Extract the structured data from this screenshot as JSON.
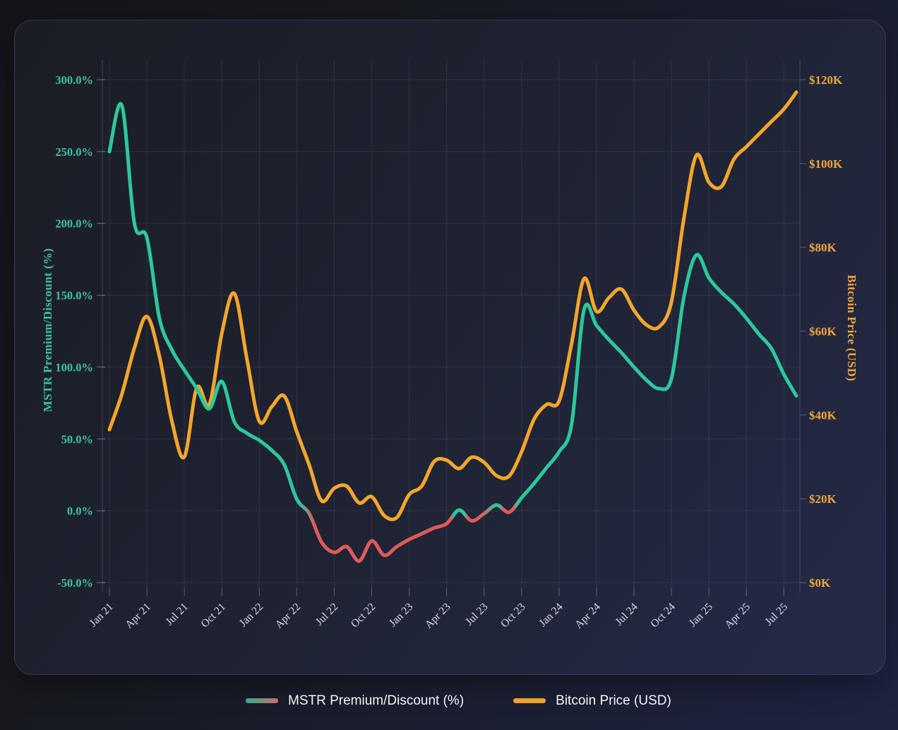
{
  "chart_data": {
    "type": "line",
    "title": "",
    "x_axis": {
      "tick_labels": [
        "Jan 21",
        "Apr 21",
        "Jul 21",
        "Oct 21",
        "Jan 22",
        "Apr 22",
        "Jul 22",
        "Oct 22",
        "Jan 23",
        "Apr 23",
        "Jul 23",
        "Oct 23",
        "Jan 24",
        "Apr 24",
        "Jul 24",
        "Oct 24",
        "Jan 25",
        "Apr 25",
        "Jul 25"
      ],
      "tick_month_offsets": [
        0,
        3,
        6,
        9,
        12,
        15,
        18,
        21,
        24,
        27,
        30,
        33,
        36,
        39,
        42,
        45,
        48,
        51,
        54
      ],
      "label_rotation_deg": -45,
      "text_color": "#d9dce9"
    },
    "left_axis": {
      "title": "MSTR Premium/Discount (%)",
      "tick_labels": [
        "300.0%",
        "250.0%",
        "200.0%",
        "150.0%",
        "100.0%",
        "50.0%",
        "0.0%",
        "-50.0%"
      ],
      "tick_values": [
        300,
        250,
        200,
        150,
        100,
        50,
        0,
        -50
      ],
      "range": [
        -50,
        300
      ],
      "text_color": "#3fc2a0"
    },
    "right_axis": {
      "title": "Bitcoin Price (USD)",
      "tick_labels": [
        "$120K",
        "$100K",
        "$80K",
        "$60K",
        "$40K",
        "$20K",
        "$0K"
      ],
      "tick_values": [
        120,
        100,
        80,
        60,
        40,
        20,
        0
      ],
      "range": [
        0,
        120
      ],
      "text_color": "#f2a63a"
    },
    "grid": {
      "show": true,
      "color": "rgba(168,178,214,0.10)",
      "spine_color": "rgba(168,178,214,0.22)"
    },
    "x_unit": "month offset from Jan 21 (one value per month, Jan 2021 through Aug 2025)",
    "series": [
      {
        "name": "MSTR Premium/Discount (%)",
        "axis": "left",
        "unit": "%",
        "color": "#2cc89c",
        "negative_color": "#e05a5a",
        "values": [
          250,
          282,
          200,
          190,
          134,
          112,
          98,
          85,
          71,
          90,
          62,
          54,
          49,
          42,
          32,
          8,
          -2,
          -22,
          -29,
          -25,
          -35,
          -21,
          -31,
          -25,
          -20,
          -16,
          -12,
          -9,
          0.5,
          -7,
          -2,
          4,
          -1,
          9,
          19,
          30,
          41,
          60,
          140,
          129,
          119,
          110,
          100,
          91,
          85,
          92,
          149,
          178,
          162,
          152,
          144,
          134,
          123,
          113,
          95,
          80
        ]
      },
      {
        "name": "Bitcoin Price (USD)",
        "axis": "right",
        "unit": "thousand USD",
        "color": "#f3a62b",
        "values": [
          36.5,
          45,
          56,
          63.5,
          54,
          38.5,
          30,
          46.5,
          42.5,
          59.5,
          69,
          53.5,
          38.5,
          42,
          44.5,
          36,
          28,
          19.5,
          22.5,
          23,
          19,
          20.5,
          16,
          15.5,
          21,
          23,
          28.9,
          29.2,
          27.2,
          29.9,
          28.7,
          25.5,
          25.4,
          31.2,
          39,
          42.5,
          43.3,
          57,
          72.5,
          64.7,
          68,
          70,
          65,
          61.5,
          61,
          67,
          87,
          102,
          95.5,
          94.5,
          101,
          104,
          107,
          110,
          113,
          117
        ]
      }
    ],
    "legend": [
      {
        "label": "MSTR Premium/Discount (%)",
        "swatch_colors": [
          "#2fae92",
          "#d06a62"
        ]
      },
      {
        "label": "Bitcoin Price (USD)",
        "swatch_colors": [
          "#f0a32a",
          "#f0a32a"
        ]
      }
    ],
    "legend_position": "bottom-center"
  }
}
